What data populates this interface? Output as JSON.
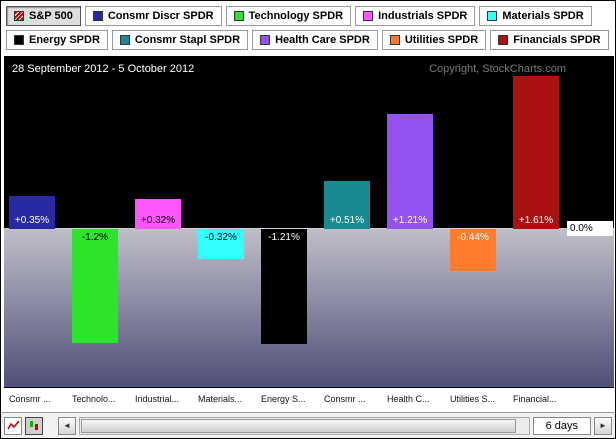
{
  "legend": {
    "rows": [
      [
        {
          "label": "S&P 500",
          "color": "#cc0000",
          "pattern": "hatch",
          "selected": true
        },
        {
          "label": "Consmr Discr SPDR",
          "color": "#2929a3"
        },
        {
          "label": "Technology SPDR",
          "color": "#2ce42c"
        },
        {
          "label": "Industrials SPDR",
          "color": "#ff55ff"
        },
        {
          "label": "Materials SPDR",
          "color": "#33ffff"
        }
      ],
      [
        {
          "label": "Energy SPDR",
          "color": "#000000"
        },
        {
          "label": "Consmr Stapl SPDR",
          "color": "#188b92"
        },
        {
          "label": "Health Care SPDR",
          "color": "#9452ee"
        },
        {
          "label": "Utilities SPDR",
          "color": "#ff7b2e"
        },
        {
          "label": "Financials SPDR",
          "color": "#aa1111"
        }
      ]
    ]
  },
  "chart": {
    "date_range": "28 September 2012 - 5 October 2012",
    "copyright": "Copyright, StockCharts.com",
    "zero_label": "0.0%"
  },
  "chart_data": {
    "type": "bar",
    "title": "28 September 2012 - 5 October 2012",
    "categories": [
      "Consmr Discr SPDR",
      "Technology SPDR",
      "Industrials SPDR",
      "Materials SPDR",
      "Energy SPDR",
      "Consmr Stapl SPDR",
      "Health Care SPDR",
      "Utilities SPDR",
      "Financials SPDR"
    ],
    "values": [
      0.35,
      -1.2,
      0.32,
      -0.32,
      -1.21,
      0.51,
      1.21,
      -0.44,
      1.61
    ],
    "value_labels": [
      "+0.35%",
      "-1.2%",
      "+0.32%",
      "-0.32%",
      "-1.21%",
      "+0.51%",
      "+1.21%",
      "-0.44%",
      "+1.61%"
    ],
    "x_tick_labels": [
      "Consmr ...",
      "Technolo...",
      "Industrial...",
      "Materials...",
      "Energy S...",
      "Consmr ...",
      "Health C...",
      "Utilities S...",
      "Financial..."
    ],
    "bar_colors": [
      "#2929a3",
      "#2ce42c",
      "#ff55ff",
      "#33ffff",
      "#000000",
      "#188b92",
      "#9452ee",
      "#ff7b2e",
      "#aa1111"
    ],
    "label_text_colors": [
      "#ffffff",
      "#000000",
      "#000000",
      "#000000",
      "#ffffff",
      "#ffffff",
      "#ffffff",
      "#ffffff",
      "#ffffff"
    ],
    "unit": "%",
    "ylabel": "",
    "ylim": [
      -1.7,
      1.85
    ],
    "zero_line": 0.0,
    "zero_line_label": "0.0%",
    "grid": false,
    "legend_position": "top"
  },
  "footer": {
    "period_label": "6 days"
  }
}
